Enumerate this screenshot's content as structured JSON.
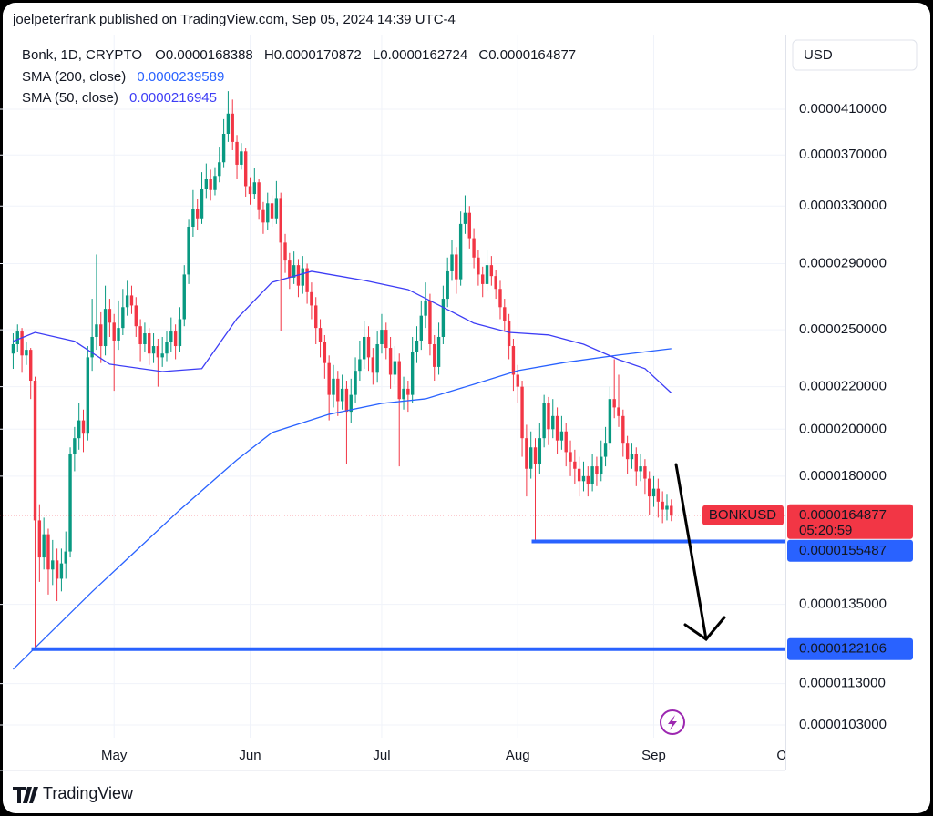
{
  "header": {
    "published": "joelpeterfrank published on TradingView.com, Sep 05, 2024 14:39 UTC-4",
    "brand": "TradingView"
  },
  "chart_data": {
    "type": "candlestick",
    "title": "Bonk, 1D, CRYPTO",
    "symbol": "BONKUSD",
    "currency": "USD",
    "countdown": "05:20:59",
    "ohlc_labels": [
      "O",
      "H",
      "L",
      "C"
    ],
    "log_scale": true,
    "grid": true,
    "up_color": "#089981",
    "down_color": "#f23645",
    "xlim": [
      -3,
      176
    ],
    "xticks": [
      {
        "value": 23,
        "label": "May"
      },
      {
        "value": 54,
        "label": "Jun"
      },
      {
        "value": 84,
        "label": "Jul"
      },
      {
        "value": 115,
        "label": "Aug"
      },
      {
        "value": 146,
        "label": "Sep"
      },
      {
        "value": 176,
        "label": "Oc"
      }
    ],
    "ylim": [
      1.001e-05,
      4.848e-05
    ],
    "yticks": [
      {
        "value": 4.1e-05,
        "label": "0.0000410000"
      },
      {
        "value": 3.7e-05,
        "label": "0.0000370000"
      },
      {
        "value": 3.3e-05,
        "label": "0.0000330000"
      },
      {
        "value": 2.9e-05,
        "label": "0.0000290000"
      },
      {
        "value": 2.5e-05,
        "label": "0.0000250000"
      },
      {
        "value": 2.2e-05,
        "label": "0.0000220000"
      },
      {
        "value": 2e-05,
        "label": "0.0000200000"
      },
      {
        "value": 1.8e-05,
        "label": "0.0000180000"
      },
      {
        "value": 1.35e-05,
        "label": "0.0000135000"
      },
      {
        "value": 1.13e-05,
        "label": "0.0000113000"
      },
      {
        "value": 1.03e-05,
        "label": "0.0000103000"
      }
    ],
    "open": [
      2.37e-05,
      2.42e-05,
      2.49e-05,
      2.36e-05,
      2.39e-05,
      2.23e-05,
      1.63e-05,
      1.5e-05,
      1.58e-05,
      1.46e-05,
      1.49e-05,
      1.43e-05,
      1.48e-05,
      1.52e-05,
      1.89e-05,
      1.96e-05,
      2.04e-05,
      1.98e-05,
      2.35e-05,
      2.46e-05,
      2.53e-05,
      2.41e-05,
      2.62e-05,
      2.54e-05,
      2.44e-05,
      2.51e-05,
      2.63e-05,
      2.7e-05,
      2.64e-05,
      2.52e-05,
      2.42e-05,
      2.48e-05,
      2.37e-05,
      2.41e-05,
      2.35e-05,
      2.37e-05,
      2.43e-05,
      2.49e-05,
      2.41e-05,
      2.56e-05,
      2.83e-05,
      3.15e-05,
      3.28e-05,
      3.21e-05,
      3.43e-05,
      3.51e-05,
      3.42e-05,
      3.53e-05,
      3.64e-05,
      3.88e-05,
      4.06e-05,
      3.81e-05,
      3.62e-05,
      3.73e-05,
      3.45e-05,
      3.39e-05,
      3.48e-05,
      3.27e-05,
      3.18e-05,
      3.32e-05,
      3.21e-05,
      3.36e-05,
      3.04e-05,
      2.92e-05,
      2.81e-05,
      2.89e-05,
      2.76e-05,
      2.87e-05,
      2.72e-05,
      2.64e-05,
      2.51e-05,
      2.43e-05,
      2.32e-05,
      2.16e-05,
      2.24e-05,
      2.13e-05,
      2.19e-05,
      2.08e-05,
      2.16e-05,
      2.28e-05,
      2.34e-05,
      2.46e-05,
      2.35e-05,
      2.27e-05,
      2.42e-05,
      2.5e-05,
      2.4e-05,
      2.26e-05,
      2.33e-05,
      2.14e-05,
      2.19e-05,
      2.16e-05,
      2.38e-05,
      2.44e-05,
      2.58e-05,
      2.67e-05,
      2.42e-05,
      2.3e-05,
      2.46e-05,
      2.68e-05,
      2.85e-05,
      2.96e-05,
      2.8e-05,
      3.17e-05,
      3.25e-05,
      3.07e-05,
      2.94e-05,
      2.83e-05,
      2.77e-05,
      2.89e-05,
      2.82e-05,
      2.74e-05,
      2.63e-05,
      2.55e-05,
      2.41e-05,
      2.26e-05,
      2.2e-05,
      1.96e-05,
      1.83e-05,
      1.92e-05,
      1.85e-05,
      1.96e-05,
      2.12e-05,
      2e-05,
      2.06e-05,
      1.95e-05,
      1.99e-05,
      1.9e-05,
      1.86e-05,
      1.83e-05,
      1.78e-05,
      1.8e-05,
      1.77e-05,
      1.84e-05,
      1.81e-05,
      1.88e-05,
      1.94e-05,
      2.14e-05,
      2.1e-05,
      2.06e-05,
      1.94e-05,
      1.87e-05,
      1.89e-05,
      1.82e-05,
      1.84e-05,
      1.79e-05,
      1.72e-05,
      1.75e-05,
      1.7e-05,
      1.67e-05,
      1.68388e-05
    ],
    "high": [
      2.48e-05,
      2.53e-05,
      2.51e-05,
      2.43e-05,
      2.4e-05,
      2.25e-05,
      1.69e-05,
      1.64e-05,
      1.6e-05,
      1.56e-05,
      1.53e-05,
      1.53e-05,
      1.59e-05,
      1.92e-05,
      2.01e-05,
      2.12e-05,
      2.09e-05,
      2.41e-05,
      2.68e-05,
      2.96e-05,
      2.6e-05,
      2.76e-05,
      2.68e-05,
      2.59e-05,
      2.67e-05,
      2.74e-05,
      2.79e-05,
      2.76e-05,
      2.69e-05,
      2.56e-05,
      2.54e-05,
      2.51e-05,
      2.48e-05,
      2.45e-05,
      2.46e-05,
      2.49e-05,
      2.57e-05,
      2.53e-05,
      2.63e-05,
      2.89e-05,
      3.2e-05,
      3.42e-05,
      3.35e-05,
      3.56e-05,
      3.63e-05,
      3.58e-05,
      3.6e-05,
      3.77e-05,
      4.01e-05,
      4.27e-05,
      4.19e-05,
      3.87e-05,
      3.8e-05,
      3.76e-05,
      3.52e-05,
      3.59e-05,
      3.51e-05,
      3.33e-05,
      3.4e-05,
      3.38e-05,
      3.49e-05,
      3.4e-05,
      3.1e-05,
      2.97e-05,
      2.98e-05,
      2.93e-05,
      2.95e-05,
      2.9e-05,
      2.78e-05,
      2.69e-05,
      2.56e-05,
      2.47e-05,
      2.36e-05,
      2.31e-05,
      2.28e-05,
      2.26e-05,
      2.23e-05,
      2.24e-05,
      2.35e-05,
      2.44e-05,
      2.55e-05,
      2.52e-05,
      2.4e-05,
      2.49e-05,
      2.59e-05,
      2.54e-05,
      2.46e-05,
      2.41e-05,
      2.37e-05,
      2.25e-05,
      2.23e-05,
      2.46e-05,
      2.52e-05,
      2.67e-05,
      2.78e-05,
      2.71e-05,
      2.47e-05,
      2.54e-05,
      2.76e-05,
      2.94e-05,
      3.06e-05,
      3.01e-05,
      3.26e-05,
      3.38e-05,
      3.3e-05,
      3.14e-05,
      2.99e-05,
      2.88e-05,
      2.99e-05,
      2.95e-05,
      2.86e-05,
      2.79e-05,
      2.68e-05,
      2.59e-05,
      2.45e-05,
      2.31e-05,
      2.23e-05,
      2.02e-05,
      1.99e-05,
      1.96e-05,
      2.03e-05,
      2.16e-05,
      2.15e-05,
      2.14e-05,
      2.1e-05,
      2.06e-05,
      2.03e-05,
      1.95e-05,
      1.91e-05,
      1.88e-05,
      1.86e-05,
      1.84e-05,
      1.89e-05,
      1.88e-05,
      1.95e-05,
      2.01e-05,
      2.2e-05,
      2.34e-05,
      2.26e-05,
      2.09e-05,
      1.97e-05,
      1.94e-05,
      1.92e-05,
      1.89e-05,
      1.87e-05,
      1.82e-05,
      1.8e-05,
      1.79e-05,
      1.74e-05,
      1.73e-05,
      1.70872e-05
    ],
    "low": [
      2.29e-05,
      2.38e-05,
      2.27e-05,
      2.31e-05,
      2.14e-05,
      1.22106e-05,
      1.42e-05,
      1.46e-05,
      1.38e-05,
      1.41e-05,
      1.36e-05,
      1.39e-05,
      1.43e-05,
      1.5e-05,
      1.82e-05,
      1.91e-05,
      1.9e-05,
      1.95e-05,
      2.28e-05,
      2.39e-05,
      2.32e-05,
      2.36e-05,
      2.46e-05,
      2.18e-05,
      2.39e-05,
      2.47e-05,
      2.58e-05,
      2.59e-05,
      2.46e-05,
      2.33e-05,
      2.38e-05,
      2.31e-05,
      2.32e-05,
      2.2e-05,
      2.3e-05,
      2.33e-05,
      2.38e-05,
      2.34e-05,
      2.38e-05,
      2.52e-05,
      2.77e-05,
      3.08e-05,
      3.13e-05,
      3.17e-05,
      3.36e-05,
      3.34e-05,
      3.38e-05,
      3.48e-05,
      3.6e-05,
      3.81e-05,
      3.74e-05,
      3.51e-05,
      3.58e-05,
      3.37e-05,
      3.31e-05,
      3.35e-05,
      3.2e-05,
      3.1e-05,
      3.13e-05,
      3.15e-05,
      3.17e-05,
      2.49e-05,
      2.84e-05,
      2.74e-05,
      2.77e-05,
      2.69e-05,
      2.71e-05,
      2.65e-05,
      2.56e-05,
      2.42e-05,
      2.35e-05,
      2.24e-05,
      2.04e-05,
      2.1e-05,
      2.06e-05,
      2.09e-05,
      1.85e-05,
      2.03e-05,
      2.12e-05,
      2.23e-05,
      2.29e-05,
      2.28e-05,
      2.21e-05,
      2.22e-05,
      2.37e-05,
      2.34e-05,
      2.19e-05,
      2.21e-05,
      1.84e-05,
      2.09e-05,
      2.08e-05,
      2.12e-05,
      2.32e-05,
      2.39e-05,
      2.51e-05,
      2.36e-05,
      2.23e-05,
      2.26e-05,
      2.42e-05,
      2.63e-05,
      2.79e-05,
      2.71e-05,
      2.76e-05,
      3.1e-05,
      3e-05,
      2.87e-05,
      2.76e-05,
      2.69e-05,
      2.73e-05,
      2.76e-05,
      2.68e-05,
      2.56e-05,
      2.49e-05,
      2.34e-05,
      2.18e-05,
      2.12e-05,
      1.88e-05,
      1.72e-05,
      1.79e-05,
      1.55487e-05,
      1.81e-05,
      1.92e-05,
      1.93e-05,
      1.96e-05,
      1.89e-05,
      1.91e-05,
      1.84e-05,
      1.8e-05,
      1.77e-05,
      1.72e-05,
      1.74e-05,
      1.72e-05,
      1.74e-05,
      1.76e-05,
      1.78e-05,
      1.84e-05,
      1.91e-05,
      2.05e-05,
      2.01e-05,
      1.88e-05,
      1.81e-05,
      1.83e-05,
      1.76e-05,
      1.78e-05,
      1.73e-05,
      1.65e-05,
      1.68e-05,
      1.64e-05,
      1.62e-05,
      1.63e-05,
      1.62724e-05
    ],
    "close": [
      2.42e-05,
      2.49e-05,
      2.36e-05,
      2.39e-05,
      2.23e-05,
      1.63e-05,
      1.5e-05,
      1.58e-05,
      1.46e-05,
      1.49e-05,
      1.43e-05,
      1.48e-05,
      1.52e-05,
      1.89e-05,
      1.96e-05,
      2.04e-05,
      1.98e-05,
      2.35e-05,
      2.46e-05,
      2.53e-05,
      2.41e-05,
      2.62e-05,
      2.54e-05,
      2.44e-05,
      2.51e-05,
      2.63e-05,
      2.7e-05,
      2.64e-05,
      2.52e-05,
      2.42e-05,
      2.48e-05,
      2.37e-05,
      2.41e-05,
      2.35e-05,
      2.37e-05,
      2.43e-05,
      2.49e-05,
      2.41e-05,
      2.56e-05,
      2.83e-05,
      3.15e-05,
      3.28e-05,
      3.21e-05,
      3.43e-05,
      3.51e-05,
      3.42e-05,
      3.53e-05,
      3.64e-05,
      3.88e-05,
      4.06e-05,
      3.81e-05,
      3.62e-05,
      3.73e-05,
      3.45e-05,
      3.39e-05,
      3.48e-05,
      3.27e-05,
      3.18e-05,
      3.32e-05,
      3.21e-05,
      3.36e-05,
      3.04e-05,
      2.92e-05,
      2.81e-05,
      2.89e-05,
      2.76e-05,
      2.87e-05,
      2.72e-05,
      2.64e-05,
      2.51e-05,
      2.43e-05,
      2.32e-05,
      2.16e-05,
      2.24e-05,
      2.13e-05,
      2.19e-05,
      2.08e-05,
      2.16e-05,
      2.28e-05,
      2.34e-05,
      2.46e-05,
      2.35e-05,
      2.27e-05,
      2.42e-05,
      2.5e-05,
      2.4e-05,
      2.26e-05,
      2.33e-05,
      2.14e-05,
      2.19e-05,
      2.16e-05,
      2.38e-05,
      2.44e-05,
      2.58e-05,
      2.67e-05,
      2.42e-05,
      2.3e-05,
      2.46e-05,
      2.68e-05,
      2.85e-05,
      2.96e-05,
      2.8e-05,
      3.17e-05,
      3.25e-05,
      3.07e-05,
      2.94e-05,
      2.83e-05,
      2.77e-05,
      2.89e-05,
      2.82e-05,
      2.74e-05,
      2.63e-05,
      2.55e-05,
      2.41e-05,
      2.26e-05,
      2.2e-05,
      1.96e-05,
      1.83e-05,
      1.92e-05,
      1.85e-05,
      1.96e-05,
      2.12e-05,
      2e-05,
      2.06e-05,
      1.95e-05,
      1.99e-05,
      1.9e-05,
      1.86e-05,
      1.83e-05,
      1.78e-05,
      1.8e-05,
      1.77e-05,
      1.84e-05,
      1.81e-05,
      1.88e-05,
      1.94e-05,
      2.14e-05,
      2.1e-05,
      2.06e-05,
      1.94e-05,
      1.87e-05,
      1.89e-05,
      1.82e-05,
      1.84e-05,
      1.79e-05,
      1.72e-05,
      1.75e-05,
      1.7e-05,
      1.67e-05,
      1.68388e-05,
      1.64877e-05
    ],
    "series": [
      {
        "name": "SMA (200, close)",
        "color": "#2962ff",
        "x": [
          0,
          18,
          38,
          51,
          59,
          72,
          84,
          94,
          105,
          115,
          126,
          138,
          150
        ],
        "values": [
          1.167e-05,
          1.389e-05,
          1.669e-05,
          1.867e-05,
          1.985e-05,
          2.068e-05,
          2.119e-05,
          2.141e-05,
          2.212e-05,
          2.281e-05,
          2.324e-05,
          2.362e-05,
          2.39589e-05
        ]
      },
      {
        "name": "SMA (50, close)",
        "color": "#3d3df5",
        "x": [
          0,
          5,
          14,
          22,
          34,
          43,
          51,
          59,
          68,
          80,
          90,
          99,
          105,
          113,
          122,
          130,
          138,
          144,
          150
        ],
        "values": [
          2.436e-05,
          2.485e-05,
          2.436e-05,
          2.314e-05,
          2.276e-05,
          2.291e-05,
          2.563e-05,
          2.781e-05,
          2.85e-05,
          2.793e-05,
          2.736e-05,
          2.616e-05,
          2.537e-05,
          2.485e-05,
          2.471e-05,
          2.42e-05,
          2.338e-05,
          2.291e-05,
          2.16945e-05
        ]
      }
    ],
    "horizontal_lines": [
      1.55487e-05,
      1.22106e-05
    ],
    "horizontal_line_color": "#2962ff"
  }
}
